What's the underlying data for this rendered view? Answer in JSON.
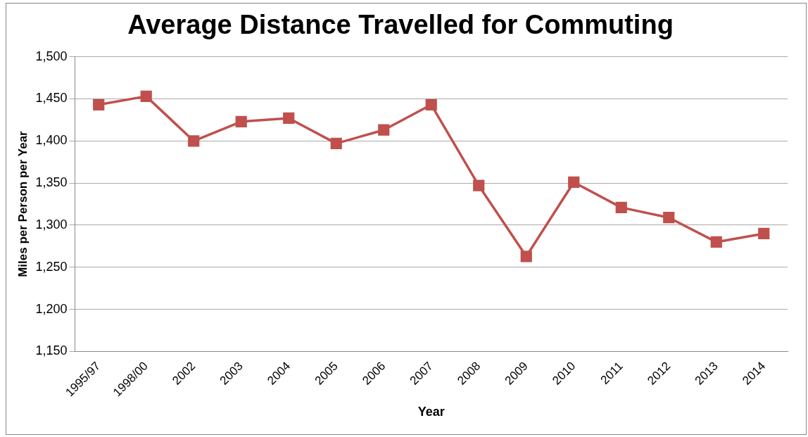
{
  "chart_data": {
    "type": "line",
    "title": "Average Distance Travelled for Commuting",
    "xlabel": "Year",
    "ylabel": "Miles per Person per Year",
    "categories": [
      "1995/97",
      "1998/00",
      "2002",
      "2003",
      "2004",
      "2005",
      "2006",
      "2007",
      "2008",
      "2009",
      "2010",
      "2011",
      "2012",
      "2013",
      "2014"
    ],
    "series": [
      {
        "color": "#c0504d",
        "values": [
          1443,
          1453,
          1400,
          1423,
          1427,
          1397,
          1413,
          1443,
          1347,
          1263,
          1351,
          1321,
          1309,
          1280,
          1290
        ]
      }
    ],
    "ylim": [
      1150,
      1500
    ],
    "yticks": [
      {
        "value": 1150,
        "label": "1,150"
      },
      {
        "value": 1200,
        "label": "1,200"
      },
      {
        "value": 1250,
        "label": "1,250"
      },
      {
        "value": 1300,
        "label": "1,300"
      },
      {
        "value": 1350,
        "label": "1,350"
      },
      {
        "value": 1400,
        "label": "1,400"
      },
      {
        "value": 1450,
        "label": "1,450"
      },
      {
        "value": 1500,
        "label": "1,500"
      }
    ],
    "grid": "y",
    "marker": "square",
    "line_style": "solid",
    "legend": false
  }
}
